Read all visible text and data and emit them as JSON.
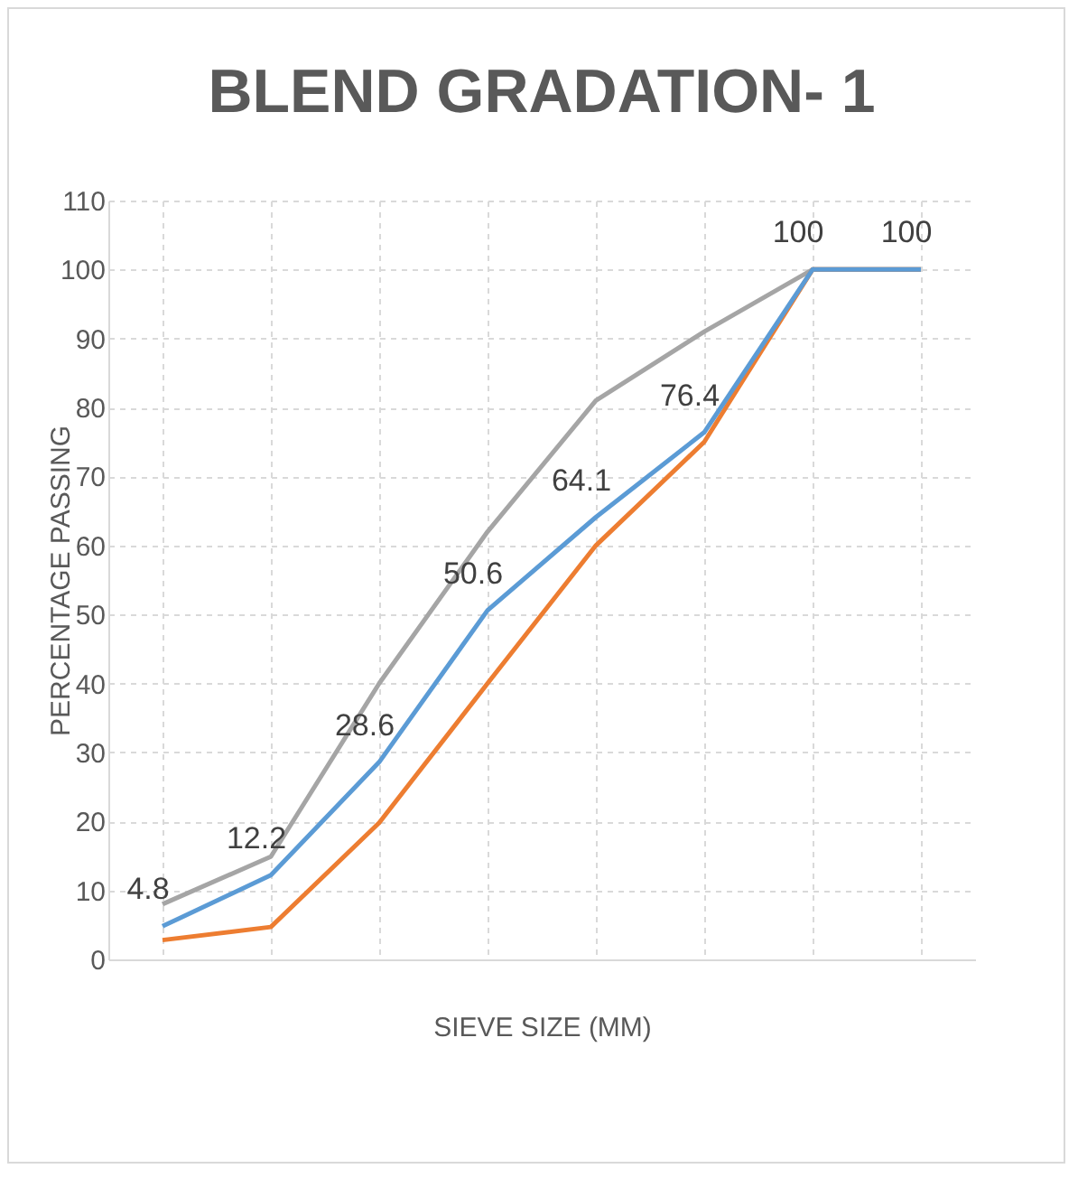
{
  "chart_data": {
    "type": "line",
    "title": "BLEND GRADATION- 1",
    "xlabel": "SIEVE SIZE (MM)",
    "ylabel": "PERCENTAGE PASSING",
    "categories": [
      null,
      null,
      null,
      null,
      null,
      null,
      null,
      null
    ],
    "series": [
      {
        "color": "#a5a5a5",
        "values": [
          8,
          14.9,
          40,
          62,
          81,
          91,
          100,
          100
        ]
      },
      {
        "color": "#ed7d31",
        "values": [
          2.8,
          4.7,
          19.8,
          40,
          60,
          75,
          100,
          100
        ]
      },
      {
        "color": "#5b9bd5",
        "values": [
          4.8,
          12.2,
          28.6,
          50.6,
          64.1,
          76.4,
          100,
          100
        ],
        "value_labels": [
          "4.8",
          "12.2",
          "28.6",
          "50.6",
          "64.1",
          "76.4",
          "100",
          "100"
        ]
      }
    ],
    "ylim": [
      0,
      110
    ],
    "yticks": [
      0,
      10,
      20,
      30,
      40,
      50,
      60,
      70,
      80,
      90,
      100,
      110
    ],
    "grid": true,
    "legend": false,
    "tick_labels": "y",
    "marker": "none",
    "line_style": "solid"
  }
}
